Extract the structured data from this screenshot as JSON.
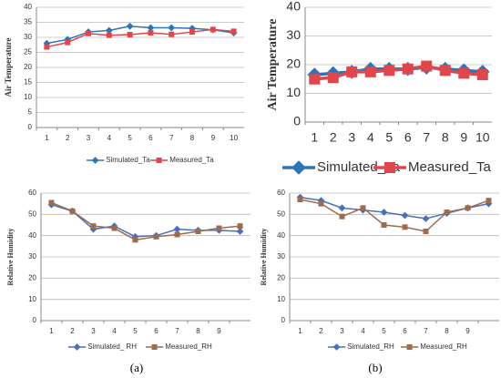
{
  "chart_data": [
    {
      "type": "line",
      "ylabel": "Air Temperature",
      "categories": [
        "1",
        "2",
        "3",
        "4",
        "5",
        "6",
        "7",
        "8",
        "9",
        "10"
      ],
      "series": [
        {
          "name": "Simulated_Ta",
          "color": "#2e75b6",
          "marker": "diamond",
          "values": [
            28,
            29.3,
            31.8,
            32.3,
            33.7,
            33.2,
            33.2,
            33,
            32.5,
            31.5
          ]
        },
        {
          "name": "Measured_Ta",
          "color": "#e0474c",
          "marker": "square",
          "values": [
            26.8,
            28.3,
            31.3,
            30.7,
            30.9,
            31.5,
            31,
            31.8,
            32.6,
            32
          ]
        }
      ],
      "ylim": [
        0,
        40
      ],
      "yticks": [
        0,
        5,
        10,
        15,
        20,
        25,
        30,
        35,
        40
      ],
      "grid": true
    },
    {
      "type": "line",
      "ylabel": "Air Temperature",
      "categories": [
        "1",
        "2",
        "3",
        "4",
        "5",
        "6",
        "7",
        "8",
        "9",
        "10"
      ],
      "series": [
        {
          "name": "Simulated_Ta",
          "color": "#2e75b6",
          "marker": "diamond",
          "values": [
            16.5,
            17,
            17.5,
            18.5,
            18.5,
            18.5,
            19,
            18.5,
            18,
            17.5
          ]
        },
        {
          "name": "Measured_Ta",
          "color": "#e0474c",
          "marker": "square",
          "values": [
            15,
            15.5,
            17.5,
            17.5,
            18,
            18.5,
            19.5,
            18,
            17,
            16.5
          ]
        }
      ],
      "ylim": [
        0,
        40
      ],
      "yticks": [
        0,
        10,
        20,
        30,
        40
      ],
      "grid": true
    },
    {
      "type": "line",
      "ylabel": "Relative Humidity",
      "categories": [
        "1",
        "2",
        "3",
        "4",
        "5",
        "6",
        "7",
        "8",
        "9",
        null
      ],
      "series": [
        {
          "name": "Simulated_ RH",
          "color": "#4a70b8",
          "marker": "diamond",
          "values": [
            54.5,
            51.5,
            43,
            44.5,
            39.5,
            40,
            43,
            42.5,
            42.5,
            42
          ]
        },
        {
          "name": "Measured_RH",
          "color": "#9c6b50",
          "marker": "square",
          "values": [
            55.5,
            51.5,
            44.5,
            43.5,
            38,
            39.5,
            40.5,
            42,
            43.5,
            44.5
          ]
        }
      ],
      "ylim": [
        0,
        60
      ],
      "yticks": [
        0,
        10,
        20,
        30,
        40,
        50,
        60
      ],
      "grid": true
    },
    {
      "type": "line",
      "ylabel": "Relative Humidity",
      "categories": [
        "1",
        "2",
        "3",
        "4",
        "5",
        "6",
        "7",
        "8",
        "9",
        null
      ],
      "series": [
        {
          "name": "Simulated_RH",
          "color": "#4a70b8",
          "marker": "diamond",
          "values": [
            58,
            56.5,
            53,
            52,
            51,
            49.5,
            48,
            50.5,
            53,
            55
          ]
        },
        {
          "name": "Measured_RH",
          "color": "#9c6b50",
          "marker": "square",
          "values": [
            57,
            55,
            49,
            53,
            45,
            44,
            42,
            51,
            53,
            56.5
          ]
        }
      ],
      "ylim": [
        0,
        60
      ],
      "yticks": [
        0,
        10,
        20,
        30,
        40,
        50,
        60
      ],
      "grid": true
    }
  ],
  "panel_labels": [
    "(a)",
    "(b)"
  ]
}
